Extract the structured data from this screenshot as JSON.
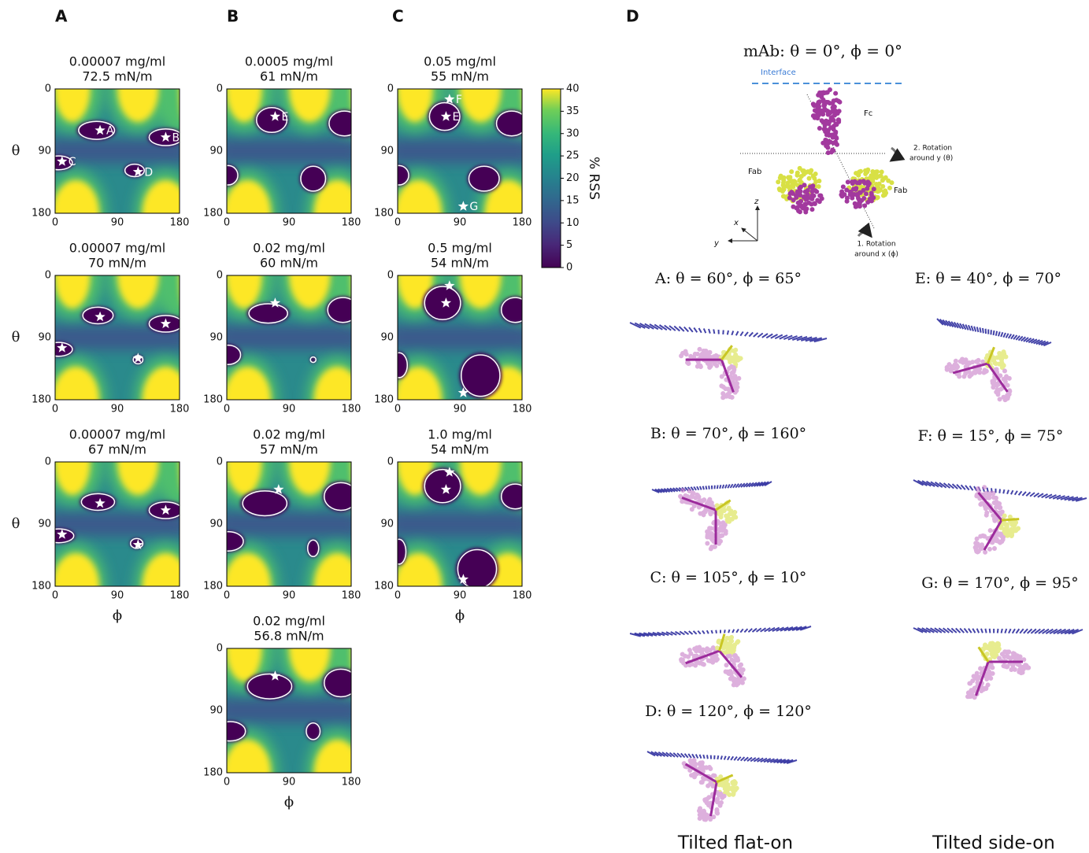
{
  "panel_letters": [
    "A",
    "B",
    "C",
    "D"
  ],
  "heatmaps": [
    {
      "title": [
        "0.00007 mg/ml",
        "72.5 mN/m"
      ],
      "star_labels": [
        "A",
        "B",
        "C",
        "D"
      ]
    },
    {
      "title": [
        "0.00007 mg/ml",
        "70 mN/m"
      ]
    },
    {
      "title": [
        "0.00007 mg/ml",
        "67 mN/m"
      ]
    },
    {
      "title": [
        "0.0005 mg/ml",
        "61 mN/m"
      ],
      "star_labels": [
        "E"
      ]
    },
    {
      "title": [
        "0.02 mg/ml",
        "60 mN/m"
      ]
    },
    {
      "title": [
        "0.02 mg/ml",
        "57 mN/m"
      ]
    },
    {
      "title": [
        "0.02 mg/ml",
        "56.8 mN/m"
      ]
    },
    {
      "title": [
        "0.05 mg/ml",
        "55 mN/m"
      ],
      "star_labels": [
        "F",
        "E",
        "G"
      ]
    },
    {
      "title": [
        "0.5 mg/ml",
        "54 mN/m"
      ]
    },
    {
      "title": [
        "1.0 mg/ml",
        "54 mN/m"
      ]
    }
  ],
  "axis": {
    "ticks": [
      "0",
      "90",
      "180"
    ],
    "x_label": "ϕ",
    "y_label": "θ"
  },
  "colorbar": {
    "ticks": [
      "0",
      "5",
      "10",
      "15",
      "20",
      "25",
      "30",
      "35",
      "40"
    ],
    "label": "% RSS"
  },
  "structure": {
    "title": "mAb:  θ = 0°, ϕ = 0°",
    "interface": "Interface",
    "fc": "Fc",
    "fab": [
      "Fab",
      "Fab"
    ],
    "rotation_y": [
      "2. Rotation",
      "around y (θ)"
    ],
    "rotation_x": [
      "1. Rotation",
      "around x (ϕ)"
    ],
    "axes": [
      "z",
      "x",
      "y"
    ]
  },
  "orientations": [
    {
      "label": "A:  θ = 60°, ϕ = 65°"
    },
    {
      "label": "B:  θ = 70°, ϕ = 160°"
    },
    {
      "label": "C:  θ = 105°, ϕ = 10°"
    },
    {
      "label": "D:  θ = 120°, ϕ = 120°"
    },
    {
      "label": "E:  θ = 40°, ϕ = 70°"
    },
    {
      "label": "F:  θ = 15°, ϕ = 75°"
    },
    {
      "label": "G:  θ = 170°, ϕ = 95°"
    }
  ],
  "columns": [
    "Tilted flat-on",
    "Tilted side-on"
  ]
}
